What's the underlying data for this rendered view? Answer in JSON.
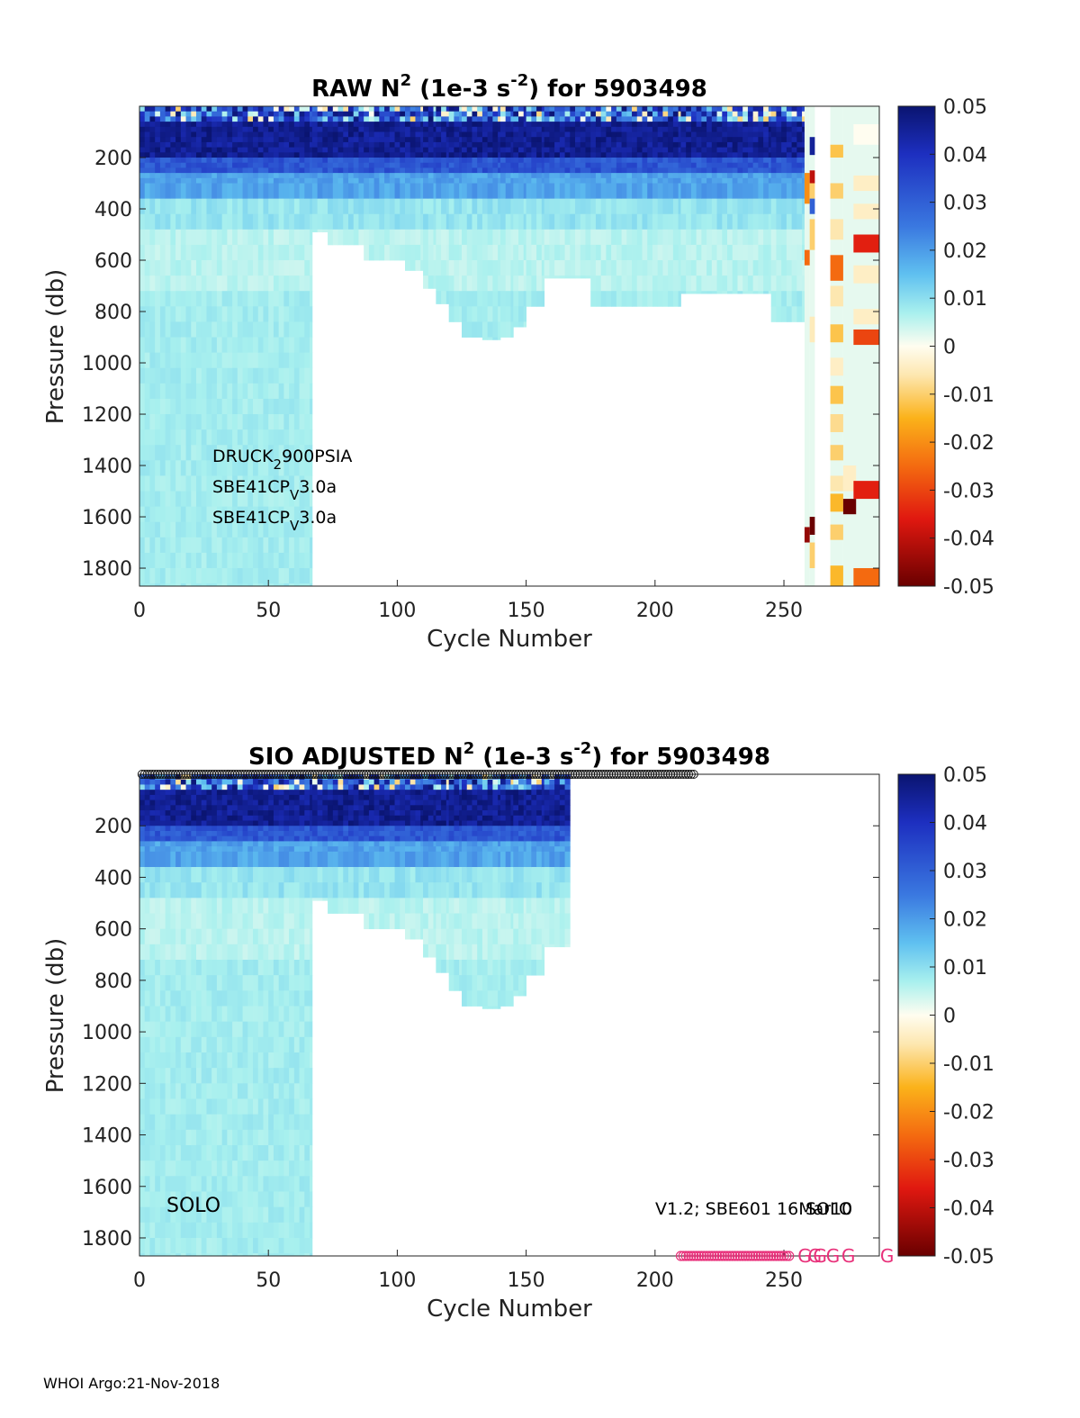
{
  "chart_data": [
    {
      "type": "heatmap",
      "title_parts": [
        "RAW N",
        "2",
        " (1e-3 s",
        "-2",
        ") for 5903498"
      ],
      "xlabel": "Cycle Number",
      "ylabel": "Pressure (db)",
      "xlim": [
        0,
        287
      ],
      "ylim": [
        1870,
        0
      ],
      "y_reversed": true,
      "xticks": [
        "0",
        "50",
        "100",
        "150",
        "200",
        "250"
      ],
      "xtick_values": [
        0,
        50,
        100,
        150,
        200,
        250
      ],
      "yticks": [
        "200",
        "400",
        "600",
        "800",
        "1000",
        "1200",
        "1400",
        "1600",
        "1800"
      ],
      "ytick_values": [
        200,
        400,
        600,
        800,
        1000,
        1200,
        1400,
        1600,
        1800
      ],
      "annotations": [
        {
          "text": "DRUCK",
          "sub": "2",
          "rest": "900PSIA"
        },
        {
          "text": "SBE41CP",
          "sub": "V",
          "rest": "3.0a"
        },
        {
          "text": "SBE41CP",
          "sub": "V",
          "rest": "3.0a"
        }
      ],
      "colorbar": {
        "range": [
          -0.05,
          0.05
        ],
        "ticks": [
          "0.05",
          "0.04",
          "0.03",
          "0.02",
          "0.01",
          "0",
          "-0.01",
          "-0.02",
          "-0.03",
          "-0.04",
          "-0.05"
        ],
        "tick_values": [
          0.05,
          0.04,
          0.03,
          0.02,
          0.01,
          0,
          -0.01,
          -0.02,
          -0.03,
          -0.04,
          -0.05
        ]
      },
      "data_extent": [
        {
          "cycles": [
            0,
            67
          ],
          "max_pressure": 1870
        },
        {
          "cycles": [
            67,
            73
          ],
          "max_pressure": 490
        },
        {
          "cycles": [
            73,
            87
          ],
          "max_pressure": 540
        },
        {
          "cycles": [
            87,
            103
          ],
          "max_pressure": 600
        },
        {
          "cycles": [
            103,
            110
          ],
          "max_pressure": 640
        },
        {
          "cycles": [
            110,
            115
          ],
          "max_pressure": 710
        },
        {
          "cycles": [
            115,
            120
          ],
          "max_pressure": 770
        },
        {
          "cycles": [
            120,
            125
          ],
          "max_pressure": 840
        },
        {
          "cycles": [
            125,
            133
          ],
          "max_pressure": 900
        },
        {
          "cycles": [
            133,
            140
          ],
          "max_pressure": 910
        },
        {
          "cycles": [
            140,
            145
          ],
          "max_pressure": 900
        },
        {
          "cycles": [
            145,
            150
          ],
          "max_pressure": 860
        },
        {
          "cycles": [
            150,
            157
          ],
          "max_pressure": 780
        },
        {
          "cycles": [
            157,
            175
          ],
          "max_pressure": 670
        },
        {
          "cycles": [
            175,
            210
          ],
          "max_pressure": 780
        },
        {
          "cycles": [
            210,
            218
          ],
          "max_pressure": 730
        },
        {
          "cycles": [
            218,
            245
          ],
          "max_pressure": 730
        },
        {
          "cycles": [
            245,
            258
          ],
          "max_pressure": 840
        }
      ],
      "sparse_cells": [
        {
          "x": 258,
          "w": 2,
          "p0": 260,
          "p1": 380,
          "v": -0.02
        },
        {
          "x": 258,
          "w": 2,
          "p0": 560,
          "p1": 620,
          "v": -0.025
        },
        {
          "x": 258,
          "w": 2,
          "p0": 1640,
          "p1": 1700,
          "v": -0.045
        },
        {
          "x": 260,
          "w": 2,
          "p0": 120,
          "p1": 190,
          "v": 0.045
        },
        {
          "x": 260,
          "w": 2,
          "p0": 250,
          "p1": 300,
          "v": -0.04
        },
        {
          "x": 260,
          "w": 2,
          "p0": 300,
          "p1": 360,
          "v": -0.01
        },
        {
          "x": 260,
          "w": 2,
          "p0": 360,
          "p1": 420,
          "v": 0.03
        },
        {
          "x": 260,
          "w": 2,
          "p0": 440,
          "p1": 560,
          "v": -0.01
        },
        {
          "x": 260,
          "w": 2,
          "p0": 820,
          "p1": 920,
          "v": -0.005
        },
        {
          "x": 260,
          "w": 2,
          "p0": 1600,
          "p1": 1670,
          "v": -0.05
        },
        {
          "x": 260,
          "w": 2,
          "p0": 1700,
          "p1": 1800,
          "v": -0.01
        },
        {
          "x": 268,
          "w": 5,
          "p0": 150,
          "p1": 200,
          "v": -0.012
        },
        {
          "x": 268,
          "w": 5,
          "p0": 300,
          "p1": 360,
          "v": -0.01
        },
        {
          "x": 268,
          "w": 5,
          "p0": 440,
          "p1": 520,
          "v": -0.006
        },
        {
          "x": 268,
          "w": 5,
          "p0": 580,
          "p1": 680,
          "v": -0.025
        },
        {
          "x": 268,
          "w": 5,
          "p0": 700,
          "p1": 780,
          "v": -0.006
        },
        {
          "x": 268,
          "w": 5,
          "p0": 850,
          "p1": 920,
          "v": -0.012
        },
        {
          "x": 268,
          "w": 5,
          "p0": 980,
          "p1": 1050,
          "v": -0.004
        },
        {
          "x": 268,
          "w": 5,
          "p0": 1090,
          "p1": 1160,
          "v": -0.012
        },
        {
          "x": 268,
          "w": 5,
          "p0": 1200,
          "p1": 1270,
          "v": -0.008
        },
        {
          "x": 268,
          "w": 5,
          "p0": 1320,
          "p1": 1380,
          "v": -0.01
        },
        {
          "x": 268,
          "w": 5,
          "p0": 1440,
          "p1": 1500,
          "v": -0.006
        },
        {
          "x": 268,
          "w": 5,
          "p0": 1510,
          "p1": 1580,
          "v": -0.014
        },
        {
          "x": 268,
          "w": 5,
          "p0": 1630,
          "p1": 1690,
          "v": -0.01
        },
        {
          "x": 268,
          "w": 5,
          "p0": 1790,
          "p1": 1870,
          "v": -0.014
        },
        {
          "x": 273,
          "w": 5,
          "p0": 1400,
          "p1": 1500,
          "v": -0.004
        },
        {
          "x": 273,
          "w": 5,
          "p0": 1530,
          "p1": 1590,
          "v": -0.05
        },
        {
          "x": 277,
          "w": 10,
          "p0": 70,
          "p1": 150,
          "v": 0.0
        },
        {
          "x": 277,
          "w": 10,
          "p0": 270,
          "p1": 330,
          "v": -0.004
        },
        {
          "x": 277,
          "w": 10,
          "p0": 380,
          "p1": 440,
          "v": -0.004
        },
        {
          "x": 277,
          "w": 10,
          "p0": 500,
          "p1": 570,
          "v": -0.035
        },
        {
          "x": 277,
          "w": 10,
          "p0": 620,
          "p1": 690,
          "v": -0.004
        },
        {
          "x": 277,
          "w": 10,
          "p0": 790,
          "p1": 850,
          "v": -0.004
        },
        {
          "x": 277,
          "w": 10,
          "p0": 870,
          "p1": 930,
          "v": -0.03
        },
        {
          "x": 277,
          "w": 10,
          "p0": 1460,
          "p1": 1530,
          "v": -0.035
        },
        {
          "x": 277,
          "w": 10,
          "p0": 1800,
          "p1": 1870,
          "v": -0.025
        }
      ]
    },
    {
      "type": "heatmap",
      "title_parts": [
        "SIO  ADJUSTED N",
        "2",
        " (1e-3 s",
        "-2",
        ") for 5903498"
      ],
      "xlabel": "Cycle Number",
      "ylabel": "Pressure (db)",
      "xlim": [
        0,
        287
      ],
      "ylim": [
        1870,
        0
      ],
      "y_reversed": true,
      "xticks": [
        "0",
        "50",
        "100",
        "150",
        "200",
        "250"
      ],
      "xtick_values": [
        0,
        50,
        100,
        150,
        200,
        250
      ],
      "yticks": [
        "200",
        "400",
        "600",
        "800",
        "1000",
        "1200",
        "1400",
        "1600",
        "1800"
      ],
      "ytick_values": [
        200,
        400,
        600,
        800,
        1000,
        1200,
        1400,
        1600,
        1800
      ],
      "platform_label": "SOLO",
      "sensor_label": "V1.2; SBE601 16Mar10",
      "sensor_label_overlap": "SOLO",
      "qc_marker": "G",
      "qc_top_cycles": [
        1,
        215
      ],
      "qc_bottom_cycles": [
        210,
        252
      ],
      "qc_bottom_extra_cycles": [
        258,
        262,
        264,
        269,
        275,
        290
      ],
      "colorbar": {
        "range": [
          -0.05,
          0.05
        ],
        "ticks": [
          "0.05",
          "0.04",
          "0.03",
          "0.02",
          "0.01",
          "0",
          "-0.01",
          "-0.02",
          "-0.03",
          "-0.04",
          "-0.05"
        ],
        "tick_values": [
          0.05,
          0.04,
          0.03,
          0.02,
          0.01,
          0,
          -0.01,
          -0.02,
          -0.03,
          -0.04,
          -0.05
        ]
      },
      "data_extent": [
        {
          "cycles": [
            0,
            67
          ],
          "max_pressure": 1870
        },
        {
          "cycles": [
            67,
            73
          ],
          "max_pressure": 490
        },
        {
          "cycles": [
            73,
            87
          ],
          "max_pressure": 540
        },
        {
          "cycles": [
            87,
            103
          ],
          "max_pressure": 600
        },
        {
          "cycles": [
            103,
            110
          ],
          "max_pressure": 640
        },
        {
          "cycles": [
            110,
            115
          ],
          "max_pressure": 710
        },
        {
          "cycles": [
            115,
            120
          ],
          "max_pressure": 770
        },
        {
          "cycles": [
            120,
            125
          ],
          "max_pressure": 840
        },
        {
          "cycles": [
            125,
            133
          ],
          "max_pressure": 900
        },
        {
          "cycles": [
            133,
            140
          ],
          "max_pressure": 910
        },
        {
          "cycles": [
            140,
            145
          ],
          "max_pressure": 900
        },
        {
          "cycles": [
            145,
            150
          ],
          "max_pressure": 860
        },
        {
          "cycles": [
            150,
            157
          ],
          "max_pressure": 780
        },
        {
          "cycles": [
            157,
            167
          ],
          "max_pressure": 670
        }
      ]
    }
  ],
  "footer": "WHOI Argo:21-Nov-2018"
}
